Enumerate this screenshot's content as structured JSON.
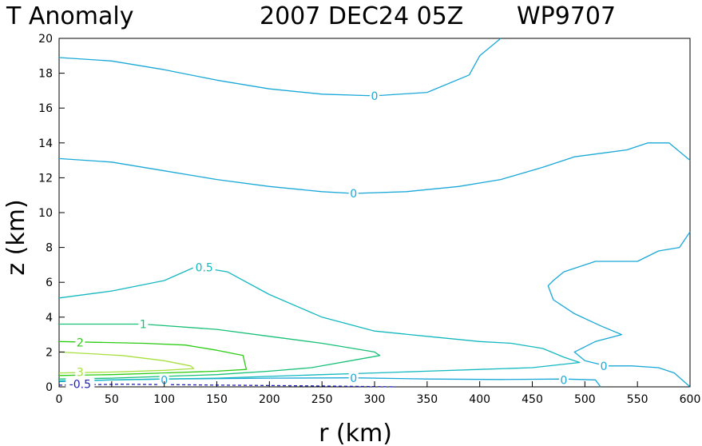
{
  "chart_data": {
    "type": "contour",
    "title_left": "T Anomaly",
    "title_date": "2007 DEC24 05Z",
    "title_storm": "WP9707",
    "xlabel": "r (km)",
    "ylabel": "z (km)",
    "xlim": [
      0,
      600
    ],
    "ylim": [
      0,
      20
    ],
    "xticks": [
      0,
      50,
      100,
      150,
      200,
      250,
      300,
      350,
      400,
      450,
      500,
      550,
      600
    ],
    "yticks": [
      0,
      2,
      4,
      6,
      8,
      10,
      12,
      14,
      16,
      18,
      20
    ],
    "colors": {
      "c_neg": "#1f1fb8",
      "c_0": "#1aa8d8",
      "c_05": "#14b8c0",
      "c_1": "#18c078",
      "c_2": "#2ccc14",
      "c_3": "#a8e040"
    },
    "contours": [
      {
        "id": "zero-upper",
        "level": "0",
        "color": "c_0",
        "points": [
          [
            0,
            18.9
          ],
          [
            50,
            18.7
          ],
          [
            100,
            18.2
          ],
          [
            150,
            17.6
          ],
          [
            200,
            17.1
          ],
          [
            250,
            16.8
          ],
          [
            300,
            16.7
          ],
          [
            350,
            16.9
          ],
          [
            390,
            17.9
          ],
          [
            400,
            19.0
          ],
          [
            420,
            20.0
          ]
        ]
      },
      {
        "id": "zero-mid",
        "level": "0",
        "color": "c_0",
        "points": [
          [
            0,
            13.1
          ],
          [
            50,
            12.9
          ],
          [
            100,
            12.4
          ],
          [
            150,
            11.9
          ],
          [
            200,
            11.5
          ],
          [
            250,
            11.2
          ],
          [
            280,
            11.1
          ],
          [
            330,
            11.2
          ],
          [
            380,
            11.5
          ],
          [
            420,
            11.9
          ],
          [
            460,
            12.6
          ],
          [
            490,
            13.2
          ],
          [
            540,
            13.6
          ],
          [
            560,
            14.0
          ],
          [
            580,
            14.0
          ],
          [
            600,
            13.0
          ]
        ]
      },
      {
        "id": "zero-right",
        "level": "0",
        "color": "c_0",
        "points": [
          [
            600,
            8.9
          ],
          [
            590,
            8.0
          ],
          [
            570,
            7.8
          ],
          [
            550,
            7.2
          ],
          [
            510,
            7.2
          ],
          [
            480,
            6.6
          ],
          [
            470,
            6.1
          ],
          [
            465,
            5.8
          ],
          [
            470,
            5.0
          ],
          [
            490,
            4.2
          ],
          [
            515,
            3.5
          ],
          [
            535,
            3.0
          ],
          [
            510,
            2.6
          ],
          [
            490,
            2.0
          ],
          [
            500,
            1.5
          ],
          [
            520,
            1.2
          ],
          [
            545,
            1.2
          ],
          [
            570,
            1.1
          ],
          [
            585,
            0.8
          ],
          [
            600,
            0.0
          ]
        ]
      },
      {
        "id": "zero-low",
        "level": "0",
        "color": "c_0",
        "points": [
          [
            0,
            0.3
          ],
          [
            50,
            0.4
          ],
          [
            100,
            0.45
          ],
          [
            200,
            0.5
          ],
          [
            280,
            0.52
          ],
          [
            350,
            0.45
          ],
          [
            420,
            0.42
          ],
          [
            480,
            0.45
          ],
          [
            510,
            0.4
          ],
          [
            515,
            0.0
          ]
        ]
      },
      {
        "id": "half",
        "level": "0.5",
        "color": "c_05",
        "points": [
          [
            0,
            5.1
          ],
          [
            50,
            5.5
          ],
          [
            100,
            6.1
          ],
          [
            130,
            6.9
          ],
          [
            160,
            6.6
          ],
          [
            200,
            5.3
          ],
          [
            250,
            4.0
          ],
          [
            300,
            3.2
          ],
          [
            350,
            2.9
          ],
          [
            400,
            2.6
          ],
          [
            430,
            2.5
          ],
          [
            460,
            2.2
          ],
          [
            480,
            1.7
          ],
          [
            495,
            1.4
          ],
          [
            450,
            1.1
          ],
          [
            400,
            1.0
          ],
          [
            350,
            0.9
          ],
          [
            300,
            0.8
          ],
          [
            250,
            0.7
          ],
          [
            200,
            0.6
          ],
          [
            150,
            0.5
          ],
          [
            100,
            0.45
          ],
          [
            50,
            0.4
          ],
          [
            0,
            0.35
          ]
        ]
      },
      {
        "id": "one",
        "level": "1",
        "color": "c_1",
        "points": [
          [
            0,
            3.6
          ],
          [
            80,
            3.6
          ],
          [
            150,
            3.3
          ],
          [
            200,
            2.9
          ],
          [
            250,
            2.5
          ],
          [
            280,
            2.2
          ],
          [
            300,
            2.0
          ],
          [
            305,
            1.8
          ],
          [
            240,
            1.1
          ],
          [
            200,
            0.9
          ],
          [
            150,
            0.7
          ],
          [
            100,
            0.6
          ],
          [
            50,
            0.5
          ],
          [
            0,
            0.45
          ]
        ]
      },
      {
        "id": "two",
        "level": "2",
        "color": "c_2",
        "points": [
          [
            0,
            2.6
          ],
          [
            80,
            2.5
          ],
          [
            120,
            2.4
          ],
          [
            150,
            2.1
          ],
          [
            175,
            1.8
          ],
          [
            178,
            1.0
          ],
          [
            150,
            0.9
          ],
          [
            100,
            0.8
          ],
          [
            50,
            0.7
          ],
          [
            0,
            0.65
          ]
        ]
      },
      {
        "id": "three",
        "level": "3",
        "color": "c_3",
        "points": [
          [
            0,
            2.0
          ],
          [
            60,
            1.8
          ],
          [
            100,
            1.5
          ],
          [
            125,
            1.2
          ],
          [
            128,
            1.05
          ],
          [
            100,
            0.95
          ],
          [
            50,
            0.85
          ],
          [
            0,
            0.8
          ]
        ]
      },
      {
        "id": "neg-half",
        "level": "-0.5",
        "color": "c_neg",
        "dashed": true,
        "points": [
          [
            0,
            0.1
          ],
          [
            60,
            0.15
          ],
          [
            150,
            0.1
          ],
          [
            250,
            0.05
          ],
          [
            320,
            0.0
          ]
        ]
      }
    ],
    "contour_labels": [
      {
        "text": "0",
        "x": 300,
        "y": 16.7,
        "color": "c_0"
      },
      {
        "text": "0",
        "x": 280,
        "y": 11.1,
        "color": "c_0"
      },
      {
        "text": "0.5",
        "x": 138,
        "y": 6.85,
        "color": "c_05"
      },
      {
        "text": "1",
        "x": 80,
        "y": 3.6,
        "color": "c_1"
      },
      {
        "text": "2",
        "x": 20,
        "y": 2.55,
        "color": "c_2"
      },
      {
        "text": "3",
        "x": 20,
        "y": 0.85,
        "color": "c_3"
      },
      {
        "text": "0",
        "x": 100,
        "y": 0.4,
        "color": "c_0"
      },
      {
        "text": "0",
        "x": 280,
        "y": 0.5,
        "color": "c_0"
      },
      {
        "text": "0",
        "x": 480,
        "y": 0.4,
        "color": "c_0"
      },
      {
        "text": "0",
        "x": 518,
        "y": 1.2,
        "color": "c_0"
      },
      {
        "text": "-0.5",
        "x": 20,
        "y": 0.15,
        "color": "c_neg"
      }
    ]
  }
}
